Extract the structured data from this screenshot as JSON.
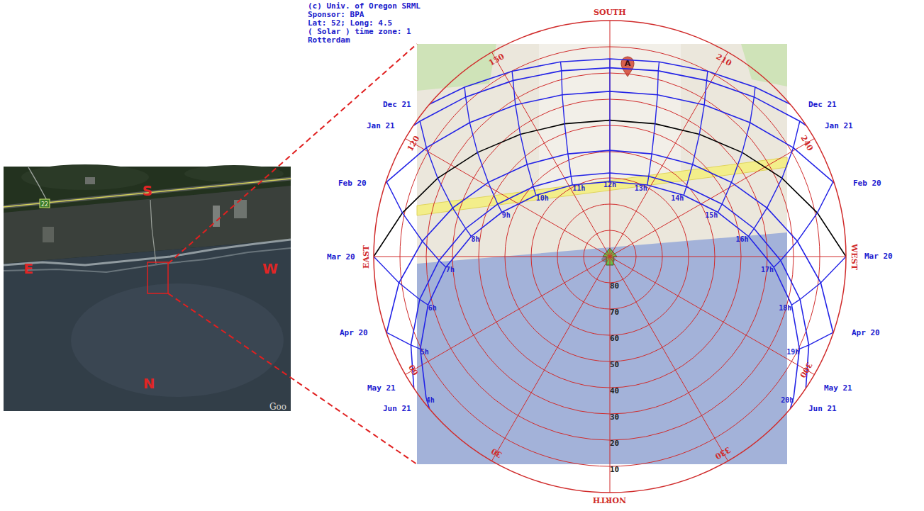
{
  "header": [
    "(c) Univ. of Oregon SRML",
    "Sponsor: BPA",
    "Lat: 52; Long: 4.5",
    "( Solar ) time zone: 1",
    "Rotterdam"
  ],
  "aerial_photo": {
    "labels": {
      "south": "S",
      "east": "E",
      "west": "W",
      "north": "N"
    },
    "road_number": "22",
    "watermark": "Goo"
  },
  "map_pin": "A",
  "chart_data": {
    "type": "polar",
    "grid": true,
    "rlim": [
      90,
      0
    ],
    "rticks": [
      10,
      20,
      30,
      40,
      50,
      60,
      70,
      80
    ],
    "thetaticks": [
      {
        "value": 0,
        "label": "NORTH"
      },
      30,
      60,
      {
        "value": 90,
        "label": "EAST"
      },
      120,
      150,
      {
        "value": 180,
        "label": "SOUTH"
      },
      210,
      240,
      {
        "value": 270,
        "label": "WEST"
      },
      300,
      330
    ],
    "hours": [
      {
        "value": 4,
        "label": "4h"
      },
      {
        "value": 5,
        "label": "5h"
      },
      {
        "value": 6,
        "label": "6h"
      },
      {
        "value": 7,
        "label": "7h"
      },
      {
        "value": 8,
        "label": "8h"
      },
      {
        "value": 9,
        "label": "9h"
      },
      {
        "value": 10,
        "label": "10h"
      },
      {
        "value": 11,
        "label": "11h"
      },
      {
        "value": 12,
        "label": "12h"
      },
      {
        "value": 13,
        "label": "13h"
      },
      {
        "value": 14,
        "label": "14h"
      },
      {
        "value": 15,
        "label": "15h"
      },
      {
        "value": 16,
        "label": "16h"
      },
      {
        "value": 17,
        "label": "17h"
      },
      {
        "value": 18,
        "label": "18h"
      },
      {
        "value": 19,
        "label": "19h"
      },
      {
        "value": 20,
        "label": "20h"
      }
    ],
    "series": [
      {
        "name": "Dec 21",
        "color": "#2323e6",
        "theta": [
          130.2,
          139.4,
          152.2,
          165.8,
          180,
          194.2,
          207.8,
          220.6,
          229.8
        ],
        "r": [
          0,
          4.9,
          10.1,
          13.4,
          14.6,
          13.4,
          10.1,
          4.9,
          0
        ],
        "hour": [
          null,
          9,
          10,
          11,
          12,
          13,
          14,
          15,
          null
        ]
      },
      {
        "name": "Jan 21",
        "color": "#2323e6",
        "theta": [
          123.7,
          125.5,
          137.9,
          151.2,
          165.4,
          180,
          194.6,
          208.8,
          222.1,
          234.5,
          236.3
        ],
        "r": [
          0,
          1.1,
          8.0,
          13.4,
          16.8,
          18.0,
          16.8,
          13.4,
          8.0,
          1.1,
          0
        ],
        "hour": [
          null,
          8,
          9,
          10,
          11,
          12,
          13,
          14,
          15,
          16,
          null
        ]
      },
      {
        "name": "Feb 20",
        "color": "#2323e6",
        "theta": [
          108.1,
          108.5,
          120.7,
          133.7,
          148.1,
          163.6,
          180,
          196.4,
          211.9,
          226.3,
          239.3,
          251.5,
          251.9
        ],
        "r": [
          0,
          0.3,
          8.7,
          16.1,
          21.9,
          25.7,
          27.0,
          25.7,
          21.9,
          16.1,
          8.7,
          0.3,
          0
        ],
        "hour": [
          null,
          7,
          8,
          9,
          10,
          11,
          12,
          13,
          14,
          15,
          16,
          17,
          null
        ]
      },
      {
        "name": "Mar 20",
        "color": "#000000",
        "theta": [
          90,
          101.9,
          114.5,
          128.2,
          143.8,
          161.2,
          180,
          198.8,
          216.2,
          231.8,
          245.5,
          258.1,
          270
        ],
        "r": [
          0,
          9.2,
          17.9,
          25.8,
          32.2,
          36.5,
          38.0,
          36.5,
          32.2,
          25.8,
          17.9,
          9.2,
          0
        ],
        "hour": [
          6,
          7,
          8,
          9,
          10,
          11,
          12,
          13,
          14,
          15,
          16,
          17,
          18
        ]
      },
      {
        "name": "Apr 20",
        "color": "#2323e6",
        "theta": [
          71.1,
          71.2,
          82.9,
          94.7,
          107.2,
          121.4,
          138.1,
          157.8,
          180,
          202.2,
          221.9,
          238.6,
          252.8,
          265.3,
          277.1,
          288.8,
          288.9
        ],
        "r": [
          0,
          0.1,
          9.0,
          18.3,
          27.3,
          35.7,
          42.8,
          47.7,
          49.5,
          47.7,
          42.8,
          35.7,
          27.3,
          18.3,
          9.0,
          0.1,
          0
        ],
        "hour": [
          null,
          5,
          6,
          7,
          8,
          9,
          10,
          11,
          12,
          13,
          14,
          15,
          16,
          17,
          18,
          19,
          null
        ]
      },
      {
        "name": "May 21",
        "color": "#2323e6",
        "theta": [
          56.1,
          66.0,
          77.3,
          88.7,
          101.0,
          115.1,
          132.4,
          154.2,
          180,
          205.8,
          227.6,
          244.9,
          259.0,
          271.3,
          282.7,
          294.0,
          303.9
        ],
        "r": [
          0,
          7.0,
          15.7,
          24.9,
          34.0,
          42.8,
          50.5,
          56.0,
          58.1,
          56.0,
          50.5,
          42.8,
          34.0,
          24.9,
          15.7,
          7.0,
          0
        ],
        "hour": [
          null,
          5,
          6,
          7,
          8,
          9,
          10,
          11,
          12,
          13,
          14,
          15,
          16,
          17,
          18,
          19,
          null
        ]
      },
      {
        "name": "Jun 21",
        "color": "#2323e6",
        "theta": [
          49.8,
          52.6,
          64.0,
          75.1,
          86.3,
          98.3,
          112.3,
          129.7,
          152.4,
          180,
          207.6,
          230.3,
          247.7,
          261.7,
          273.7,
          284.9,
          296.0,
          307.4,
          310.2
        ],
        "r": [
          0,
          1.8,
          9.6,
          18.3,
          27.4,
          36.6,
          45.5,
          53.4,
          59.2,
          61.4,
          59.2,
          53.4,
          45.5,
          36.6,
          27.4,
          18.3,
          9.6,
          1.8,
          0
        ],
        "hour": [
          null,
          4,
          5,
          6,
          7,
          8,
          9,
          10,
          11,
          12,
          13,
          14,
          15,
          16,
          17,
          18,
          19,
          20,
          null
        ]
      }
    ]
  }
}
